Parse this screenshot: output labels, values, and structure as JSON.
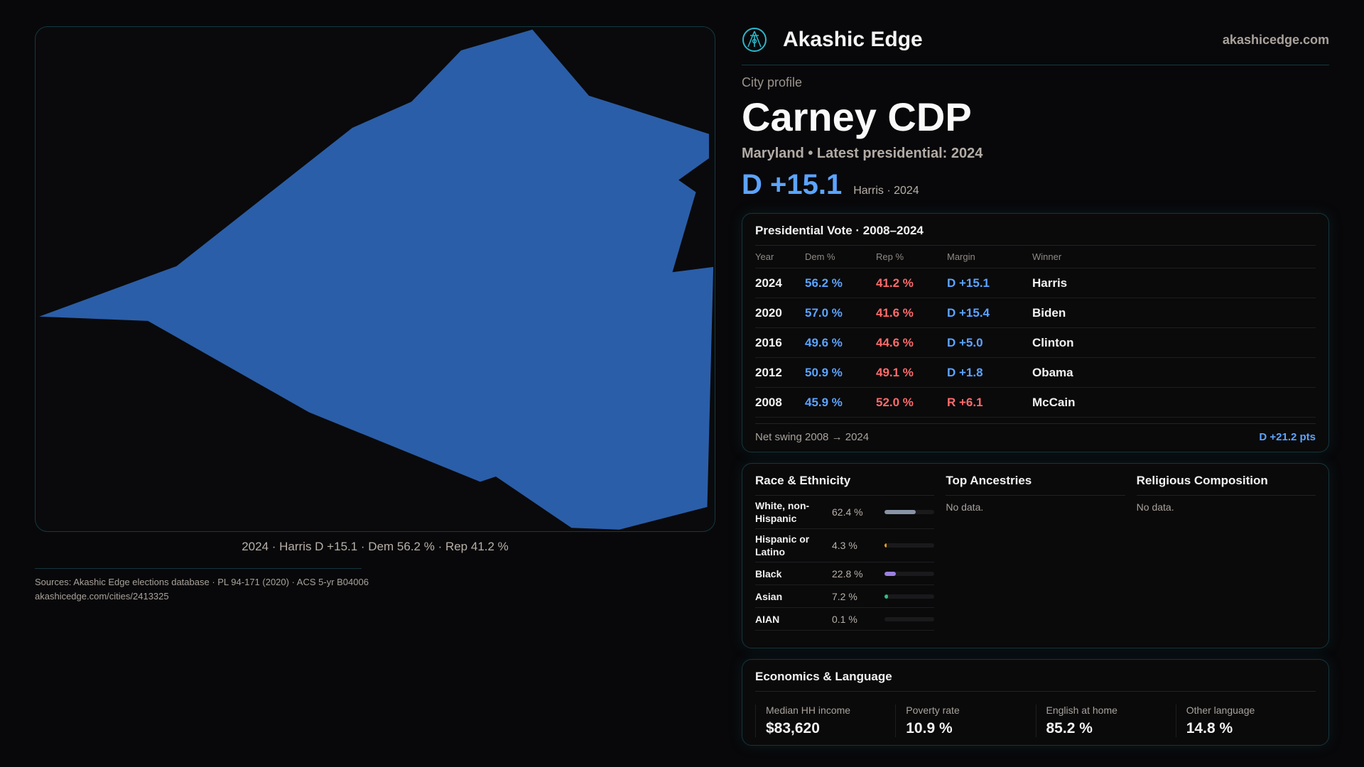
{
  "brand": {
    "name": "Akashic Edge",
    "site": "akashicedge.com",
    "icon": "akashic-logo-icon"
  },
  "kicker": "City profile",
  "title": "Carney CDP",
  "subtitle": "Maryland • Latest presidential: 2024",
  "headline": {
    "margin": "D +15.1",
    "winner": "Harris · 2024"
  },
  "map": {
    "caption": "2024 · Harris D +15.1 · Dem 56.2 % · Rep 41.2 %",
    "fill": "#2b5ea8"
  },
  "vote": {
    "title": "Presidential Vote · 2008–2024",
    "headers": [
      "Year",
      "Dem %",
      "Rep %",
      "Margin",
      "Winner"
    ],
    "rows": [
      {
        "year": "2024",
        "dem": "56.2 %",
        "rep": "41.2 %",
        "margin": "D +15.1",
        "party": "D",
        "winner": "Harris"
      },
      {
        "year": "2020",
        "dem": "57.0 %",
        "rep": "41.6 %",
        "margin": "D +15.4",
        "party": "D",
        "winner": "Biden"
      },
      {
        "year": "2016",
        "dem": "49.6 %",
        "rep": "44.6 %",
        "margin": "D +5.0",
        "party": "D",
        "winner": "Clinton"
      },
      {
        "year": "2012",
        "dem": "50.9 %",
        "rep": "49.1 %",
        "margin": "D +1.8",
        "party": "D",
        "winner": "Obama"
      },
      {
        "year": "2008",
        "dem": "45.9 %",
        "rep": "52.0 %",
        "margin": "R +6.1",
        "party": "R",
        "winner": "McCain"
      }
    ],
    "swing_label": "Net swing 2008 → 2024",
    "swing_value": "D +21.2 pts"
  },
  "race": {
    "title": "Race & Ethnicity",
    "rows": [
      {
        "label": "White, non-Hispanic",
        "value": "62.4 %",
        "pct": 62.4,
        "color": "#8893a6"
      },
      {
        "label": "Hispanic or Latino",
        "value": "4.3 %",
        "pct": 4.3,
        "color": "#e0a020"
      },
      {
        "label": "Black",
        "value": "22.8 %",
        "pct": 22.8,
        "color": "#9a80e0"
      },
      {
        "label": "Asian",
        "value": "7.2 %",
        "pct": 7.2,
        "color": "#30c080"
      },
      {
        "label": "AIAN",
        "value": "0.1 %",
        "pct": 0.1,
        "color": "#666"
      }
    ]
  },
  "ancestries": {
    "title": "Top Ancestries",
    "empty": "No data."
  },
  "religion": {
    "title": "Religious Composition",
    "empty": "No data."
  },
  "econ": {
    "title": "Economics & Language",
    "stats": [
      {
        "label": "Median HH income",
        "value": "$83,620"
      },
      {
        "label": "Poverty rate",
        "value": "10.9 %"
      },
      {
        "label": "English at home",
        "value": "85.2 %"
      },
      {
        "label": "Other language",
        "value": "14.8 %"
      }
    ]
  },
  "footer": {
    "sources": "Sources: Akashic Edge elections database · PL 94-171 (2020) · ACS 5-yr B04006",
    "url": "akashicedge.com/cities/2413325"
  }
}
